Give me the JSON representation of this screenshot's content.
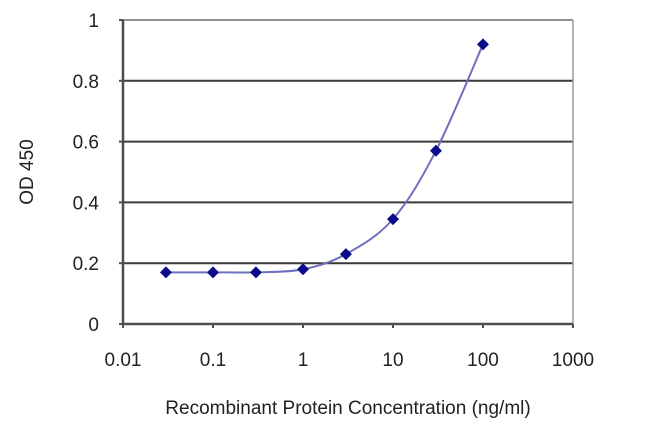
{
  "chart_data": {
    "type": "line",
    "title": "",
    "xlabel": "Recombinant Protein Concentration (ng/ml)",
    "ylabel": "OD 450",
    "x_scale": "log",
    "xlim": [
      0.01,
      1000
    ],
    "ylim": [
      0,
      1
    ],
    "x_ticks": [
      0.01,
      0.1,
      1,
      10,
      100,
      1000
    ],
    "x_tick_labels": [
      "0.01",
      "0.1",
      "1",
      "10",
      "100",
      "1000"
    ],
    "y_ticks": [
      0,
      0.2,
      0.4,
      0.6,
      0.8,
      1
    ],
    "y_tick_labels": [
      "0",
      "0.2",
      "0.4",
      "0.6",
      "0.8",
      "1"
    ],
    "grid": "horizontal",
    "legend": null,
    "series": [
      {
        "name": "OD 450",
        "marker": "diamond",
        "x": [
          0.03,
          0.1,
          0.3,
          1,
          3,
          10,
          30,
          100
        ],
        "y": [
          0.17,
          0.17,
          0.17,
          0.18,
          0.23,
          0.345,
          0.57,
          0.92
        ]
      }
    ]
  },
  "colors": {
    "background": "#ffffff",
    "axis": "#4d4d4d",
    "grid": "#3a3a3a",
    "line": "#6f6fc0",
    "marker": "#0c0c8a",
    "text": "#222222"
  }
}
